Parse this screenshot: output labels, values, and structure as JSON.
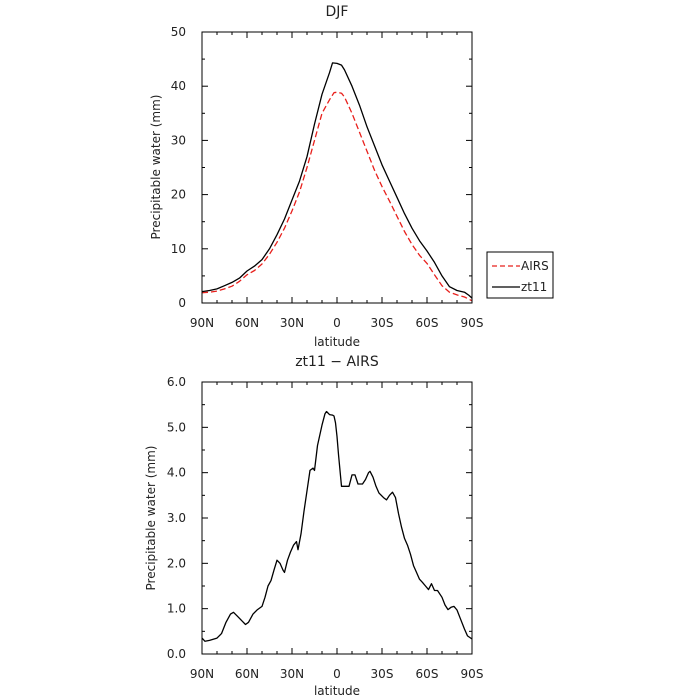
{
  "chart_data": [
    {
      "type": "line",
      "title": "DJF",
      "xlabel": "latitude",
      "ylabel": "Precipitable water (mm)",
      "xlim": [
        90,
        -90
      ],
      "ylim": [
        0,
        50
      ],
      "xticks": [
        {
          "value": 90,
          "label": "90N"
        },
        {
          "value": 60,
          "label": "60N"
        },
        {
          "value": 30,
          "label": "30N"
        },
        {
          "value": 0,
          "label": "0"
        },
        {
          "value": -30,
          "label": "30S"
        },
        {
          "value": -60,
          "label": "60S"
        },
        {
          "value": -90,
          "label": "90S"
        }
      ],
      "yticks": [
        {
          "value": 0,
          "label": "0"
        },
        {
          "value": 10,
          "label": "10"
        },
        {
          "value": 20,
          "label": "20"
        },
        {
          "value": 30,
          "label": "30"
        },
        {
          "value": 40,
          "label": "40"
        },
        {
          "value": 50,
          "label": "50"
        }
      ],
      "legend": {
        "placement": "right",
        "entries": [
          "AIRS",
          "zt11"
        ]
      },
      "series": [
        {
          "name": "AIRS",
          "color": "#e8201c",
          "dash": "dashed",
          "points": [
            [
              90,
              1.9
            ],
            [
              85,
              2.0
            ],
            [
              80,
              2.2
            ],
            [
              75,
              2.6
            ],
            [
              70,
              3.1
            ],
            [
              65,
              4.0
            ],
            [
              60,
              5.2
            ],
            [
              55,
              6.0
            ],
            [
              50,
              7.2
            ],
            [
              45,
              9.0
            ],
            [
              40,
              11.2
            ],
            [
              35,
              13.8
            ],
            [
              30,
              17.0
            ],
            [
              25,
              20.5
            ],
            [
              20,
              25.0
            ],
            [
              15,
              30.0
            ],
            [
              10,
              35.0
            ],
            [
              5,
              37.5
            ],
            [
              2,
              38.8
            ],
            [
              0,
              38.9
            ],
            [
              -3,
              38.7
            ],
            [
              -5,
              38.0
            ],
            [
              -10,
              35.0
            ],
            [
              -15,
              31.5
            ],
            [
              -20,
              28.0
            ],
            [
              -25,
              24.5
            ],
            [
              -30,
              21.5
            ],
            [
              -35,
              18.8
            ],
            [
              -40,
              16.0
            ],
            [
              -45,
              13.2
            ],
            [
              -50,
              10.8
            ],
            [
              -55,
              8.8
            ],
            [
              -60,
              7.3
            ],
            [
              -65,
              5.2
            ],
            [
              -70,
              3.2
            ],
            [
              -75,
              2.0
            ],
            [
              -80,
              1.5
            ],
            [
              -85,
              1.1
            ],
            [
              -88,
              0.7
            ],
            [
              -90,
              0.4
            ]
          ]
        },
        {
          "name": "zt11",
          "color": "#000000",
          "dash": "solid",
          "points": [
            [
              90,
              2.1
            ],
            [
              85,
              2.3
            ],
            [
              80,
              2.6
            ],
            [
              75,
              3.2
            ],
            [
              70,
              3.8
            ],
            [
              65,
              4.6
            ],
            [
              60,
              5.9
            ],
            [
              55,
              6.8
            ],
            [
              50,
              8.0
            ],
            [
              45,
              10.0
            ],
            [
              40,
              12.6
            ],
            [
              35,
              15.5
            ],
            [
              30,
              19.0
            ],
            [
              25,
              22.5
            ],
            [
              20,
              27.0
            ],
            [
              15,
              33.0
            ],
            [
              10,
              38.5
            ],
            [
              5,
              42.5
            ],
            [
              3,
              44.3
            ],
            [
              0,
              44.2
            ],
            [
              -3,
              43.9
            ],
            [
              -5,
              43.0
            ],
            [
              -10,
              40.0
            ],
            [
              -15,
              36.5
            ],
            [
              -20,
              32.5
            ],
            [
              -25,
              29.0
            ],
            [
              -30,
              25.5
            ],
            [
              -35,
              22.5
            ],
            [
              -40,
              19.5
            ],
            [
              -45,
              16.5
            ],
            [
              -50,
              13.8
            ],
            [
              -55,
              11.5
            ],
            [
              -60,
              9.6
            ],
            [
              -65,
              7.5
            ],
            [
              -70,
              5.0
            ],
            [
              -75,
              3.0
            ],
            [
              -80,
              2.3
            ],
            [
              -85,
              2.0
            ],
            [
              -88,
              1.4
            ],
            [
              -90,
              0.9
            ]
          ]
        }
      ]
    },
    {
      "type": "line",
      "title": "zt11 − AIRS",
      "xlabel": "latitude",
      "ylabel": "Precipitable water (mm)",
      "xlim": [
        90,
        -90
      ],
      "ylim": [
        0,
        6
      ],
      "xticks": [
        {
          "value": 90,
          "label": "90N"
        },
        {
          "value": 60,
          "label": "60N"
        },
        {
          "value": 30,
          "label": "30N"
        },
        {
          "value": 0,
          "label": "0"
        },
        {
          "value": -30,
          "label": "30S"
        },
        {
          "value": -60,
          "label": "60S"
        },
        {
          "value": -90,
          "label": "90S"
        }
      ],
      "yticks": [
        {
          "value": 0,
          "label": "0.0"
        },
        {
          "value": 1,
          "label": "1.0"
        },
        {
          "value": 2,
          "label": "2.0"
        },
        {
          "value": 3,
          "label": "3.0"
        },
        {
          "value": 4,
          "label": "4.0"
        },
        {
          "value": 5,
          "label": "5.0"
        },
        {
          "value": 6,
          "label": "6.0"
        }
      ],
      "series": [
        {
          "name": "zt11 − AIRS",
          "color": "#000000",
          "dash": "solid",
          "points": [
            [
              90,
              0.35
            ],
            [
              88,
              0.28
            ],
            [
              85,
              0.3
            ],
            [
              80,
              0.35
            ],
            [
              77,
              0.45
            ],
            [
              74,
              0.7
            ],
            [
              71,
              0.88
            ],
            [
              69,
              0.92
            ],
            [
              66,
              0.82
            ],
            [
              63,
              0.72
            ],
            [
              61,
              0.65
            ],
            [
              59,
              0.7
            ],
            [
              56,
              0.88
            ],
            [
              53,
              0.98
            ],
            [
              50,
              1.05
            ],
            [
              48,
              1.25
            ],
            [
              46,
              1.5
            ],
            [
              44,
              1.62
            ],
            [
              42,
              1.85
            ],
            [
              40,
              2.07
            ],
            [
              38,
              2.0
            ],
            [
              36,
              1.85
            ],
            [
              35,
              1.8
            ],
            [
              33,
              2.07
            ],
            [
              31,
              2.25
            ],
            [
              29,
              2.4
            ],
            [
              27,
              2.48
            ],
            [
              26,
              2.3
            ],
            [
              24,
              2.65
            ],
            [
              22,
              3.15
            ],
            [
              20,
              3.6
            ],
            [
              18,
              4.05
            ],
            [
              16,
              4.1
            ],
            [
              15,
              4.05
            ],
            [
              13,
              4.6
            ],
            [
              10,
              5.05
            ],
            [
              8,
              5.3
            ],
            [
              7,
              5.35
            ],
            [
              5,
              5.28
            ],
            [
              3,
              5.27
            ],
            [
              2,
              5.25
            ],
            [
              1,
              5.1
            ],
            [
              0,
              4.8
            ],
            [
              -1,
              4.4
            ],
            [
              -2,
              4.05
            ],
            [
              -3,
              3.7
            ],
            [
              -6,
              3.7
            ],
            [
              -8,
              3.7
            ],
            [
              -10,
              3.95
            ],
            [
              -12,
              3.95
            ],
            [
              -14,
              3.75
            ],
            [
              -17,
              3.75
            ],
            [
              -19,
              3.85
            ],
            [
              -21,
              4.0
            ],
            [
              -22,
              4.03
            ],
            [
              -24,
              3.9
            ],
            [
              -26,
              3.7
            ],
            [
              -28,
              3.55
            ],
            [
              -31,
              3.45
            ],
            [
              -33,
              3.4
            ],
            [
              -35,
              3.5
            ],
            [
              -37,
              3.57
            ],
            [
              -39,
              3.45
            ],
            [
              -41,
              3.1
            ],
            [
              -43,
              2.8
            ],
            [
              -45,
              2.55
            ],
            [
              -47,
              2.4
            ],
            [
              -49,
              2.2
            ],
            [
              -51,
              1.95
            ],
            [
              -53,
              1.8
            ],
            [
              -55,
              1.65
            ],
            [
              -57,
              1.58
            ],
            [
              -59,
              1.5
            ],
            [
              -61,
              1.42
            ],
            [
              -63,
              1.55
            ],
            [
              -65,
              1.4
            ],
            [
              -67,
              1.4
            ],
            [
              -70,
              1.25
            ],
            [
              -72,
              1.08
            ],
            [
              -74,
              0.98
            ],
            [
              -76,
              1.03
            ],
            [
              -78,
              1.05
            ],
            [
              -80,
              0.97
            ],
            [
              -82,
              0.8
            ],
            [
              -85,
              0.55
            ],
            [
              -87,
              0.4
            ],
            [
              -90,
              0.33
            ]
          ]
        }
      ]
    }
  ]
}
